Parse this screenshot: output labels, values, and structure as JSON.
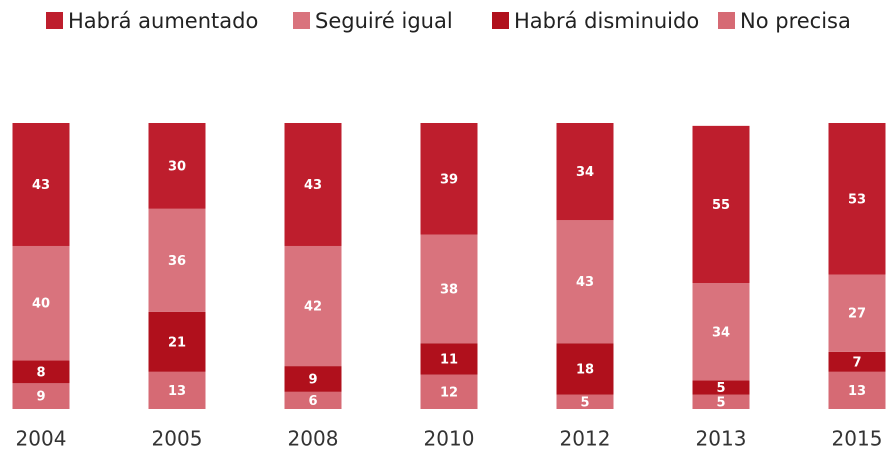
{
  "chart_data": {
    "type": "stacked_bar",
    "categories": [
      "2004",
      "2005",
      "2008",
      "2010",
      "2012",
      "2013",
      "2015"
    ],
    "series": [
      {
        "name": "Habrá aumentado",
        "color": "#be1e2d",
        "values": [
          43,
          30,
          43,
          39,
          34,
          55,
          53
        ]
      },
      {
        "name": "Seguiré igual",
        "color": "#d9737d",
        "values": [
          40,
          36,
          42,
          38,
          43,
          34,
          27
        ]
      },
      {
        "name": "Habrá disminuido",
        "color": "#b0101c",
        "values": [
          8,
          21,
          9,
          11,
          18,
          5,
          7
        ]
      },
      {
        "name": "No precisa",
        "color": "#d66a74",
        "values": [
          9,
          13,
          6,
          12,
          5,
          5,
          13
        ]
      }
    ],
    "ylim": [
      0,
      100
    ]
  }
}
